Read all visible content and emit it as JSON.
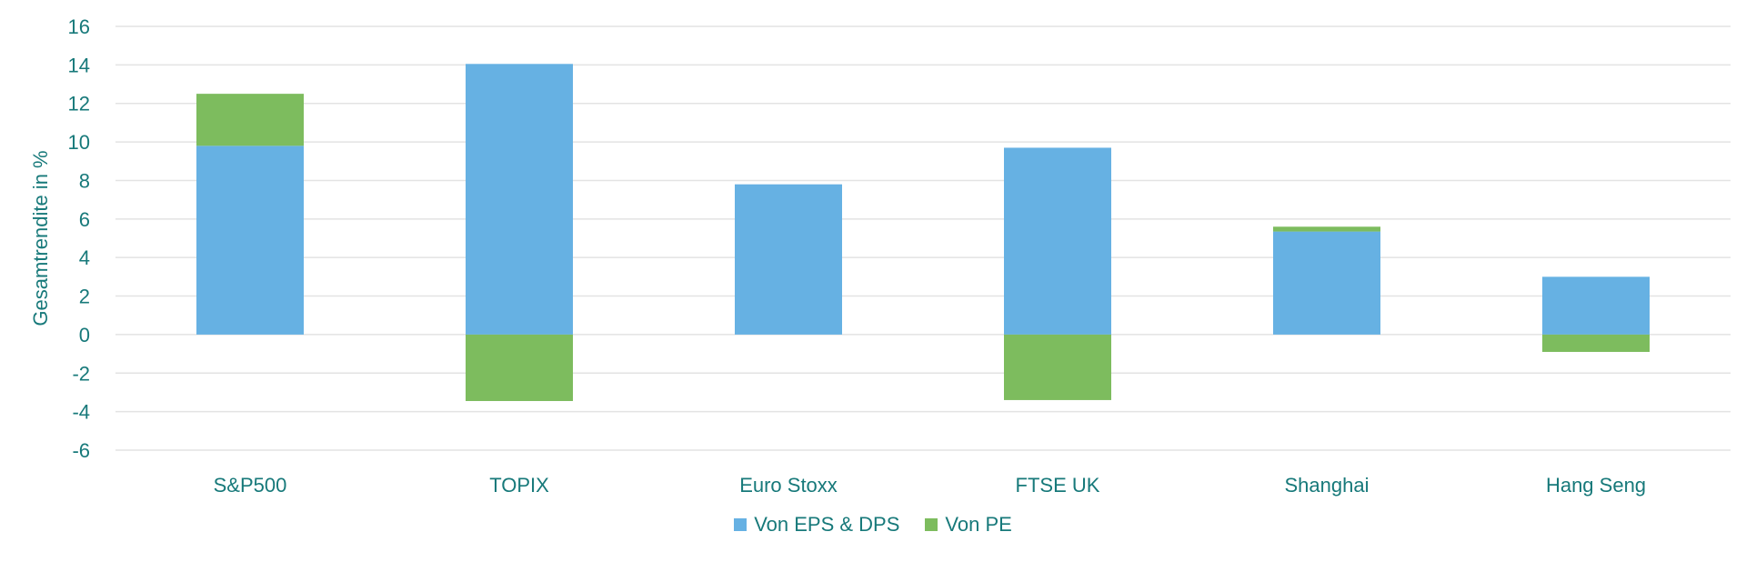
{
  "chart_data": {
    "type": "bar",
    "stacked": true,
    "title": "",
    "xlabel": "",
    "ylabel": "Gesamtrendite in %",
    "ylim": [
      -6,
      16
    ],
    "yticks": [
      16,
      14,
      12,
      10,
      8,
      6,
      4,
      2,
      0,
      -2,
      -4,
      -6
    ],
    "grid": true,
    "legend_position": "bottom",
    "categories": [
      "S&P500",
      "TOPIX",
      "Euro Stoxx",
      "FTSE UK",
      "Shanghai",
      "Hang Seng"
    ],
    "series": [
      {
        "name": "Von EPS & DPS",
        "color": "#66b1e3",
        "values": [
          9.8,
          14.05,
          7.8,
          9.7,
          5.35,
          3.0
        ]
      },
      {
        "name": "Von PE",
        "color": "#7dbc5e",
        "values": [
          2.7,
          -3.45,
          0,
          -3.4,
          0.25,
          -0.9
        ]
      }
    ]
  }
}
